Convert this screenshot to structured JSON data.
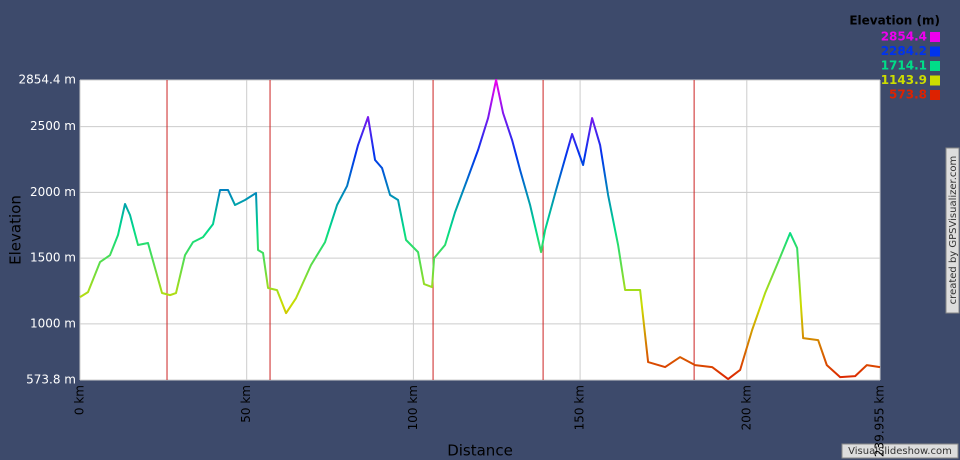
{
  "chart_data": {
    "type": "line",
    "ylabel": "Elevation",
    "xlabel": "Distance",
    "x": [
      0,
      2.4,
      6,
      9,
      11.4,
      13.5,
      15,
      17.4,
      20.4,
      22.5,
      24.6,
      27,
      28.8,
      31.5,
      33.9,
      36.9,
      39.9,
      42,
      44.4,
      46.5,
      49.5,
      52.8,
      53.4,
      54.9,
      56.4,
      59.1,
      61.8,
      64.8,
      69.3,
      73.5,
      77.1,
      80.1,
      83.4,
      86.4,
      88.5,
      90.6,
      93,
      95.4,
      97.8,
      101.4,
      103.2,
      105.6,
      106.2,
      109.5,
      112.5,
      116.1,
      119.4,
      122.4,
      124.8,
      126.9,
      129.6,
      132,
      135,
      138.3,
      139.5,
      142.8,
      147.6,
      150.9,
      153.6,
      156,
      158.4,
      161.4,
      163.5,
      168,
      170.4,
      175.5,
      180,
      184.5,
      189.6,
      194.4,
      198,
      201.6,
      205.5,
      209.4,
      213,
      215.1,
      216.9,
      221.4,
      224,
      228,
      232.5,
      236,
      239.955
    ],
    "values": [
      1204,
      1242,
      1470,
      1523,
      1676,
      1912,
      1828,
      1600,
      1615,
      1425,
      1235,
      1219,
      1235,
      1523,
      1622,
      1660,
      1759,
      2018,
      2018,
      1904,
      1942,
      1995,
      1562,
      1539,
      1273,
      1257,
      1082,
      1196,
      1448,
      1622,
      1904,
      2048,
      2360,
      2573,
      2246,
      2185,
      1980,
      1942,
      1638,
      1546,
      1303,
      1280,
      1500,
      1600,
      1850,
      2094,
      2322,
      2565,
      2854.4,
      2603,
      2398,
      2170,
      1904,
      1546,
      1713,
      2018,
      2444,
      2208,
      2565,
      2360,
      1980,
      1600,
      1258,
      1258,
      710,
      672,
      748,
      687,
      672,
      581,
      650,
      954,
      1235,
      1470,
      1691,
      1577,
      892,
      877,
      687,
      596,
      603,
      687,
      672
    ],
    "xlim": [
      0,
      239.955
    ],
    "ylim": [
      573.8,
      2854.4
    ],
    "xticks": [
      {
        "value": 0,
        "label": "0 km"
      },
      {
        "value": 50,
        "label": "50 km"
      },
      {
        "value": 100,
        "label": "100 km"
      },
      {
        "value": 150,
        "label": "150 km"
      },
      {
        "value": 200,
        "label": "200 km"
      },
      {
        "value": 239.955,
        "label": "239.955 km"
      }
    ],
    "yticks": [
      {
        "value": 573.8,
        "label": "573.8 m"
      },
      {
        "value": 1000,
        "label": "1000 m"
      },
      {
        "value": 1500,
        "label": "1500 m"
      },
      {
        "value": 2000,
        "label": "2000 m"
      },
      {
        "value": 2500,
        "label": "2500 m"
      },
      {
        "value": 2854.4,
        "label": "2854.4 m"
      }
    ],
    "grid": true,
    "segment_markers": [
      26.1,
      57.0,
      105.9,
      138.9,
      184.2
    ],
    "marker_color": "#cc2222",
    "color_scale": {
      "title": "Elevation (m)",
      "stops": [
        {
          "value": 2854.4,
          "color": "#ee00ee"
        },
        {
          "value": 2284.2,
          "color": "#0033ee"
        },
        {
          "value": 1714.1,
          "color": "#00dd88"
        },
        {
          "value": 1143.9,
          "color": "#ccdd00"
        },
        {
          "value": 573.8,
          "color": "#dd2200"
        }
      ]
    }
  },
  "credits": [
    "created by GPSVisualizer.com",
    "VisualSlideshow.com"
  ]
}
